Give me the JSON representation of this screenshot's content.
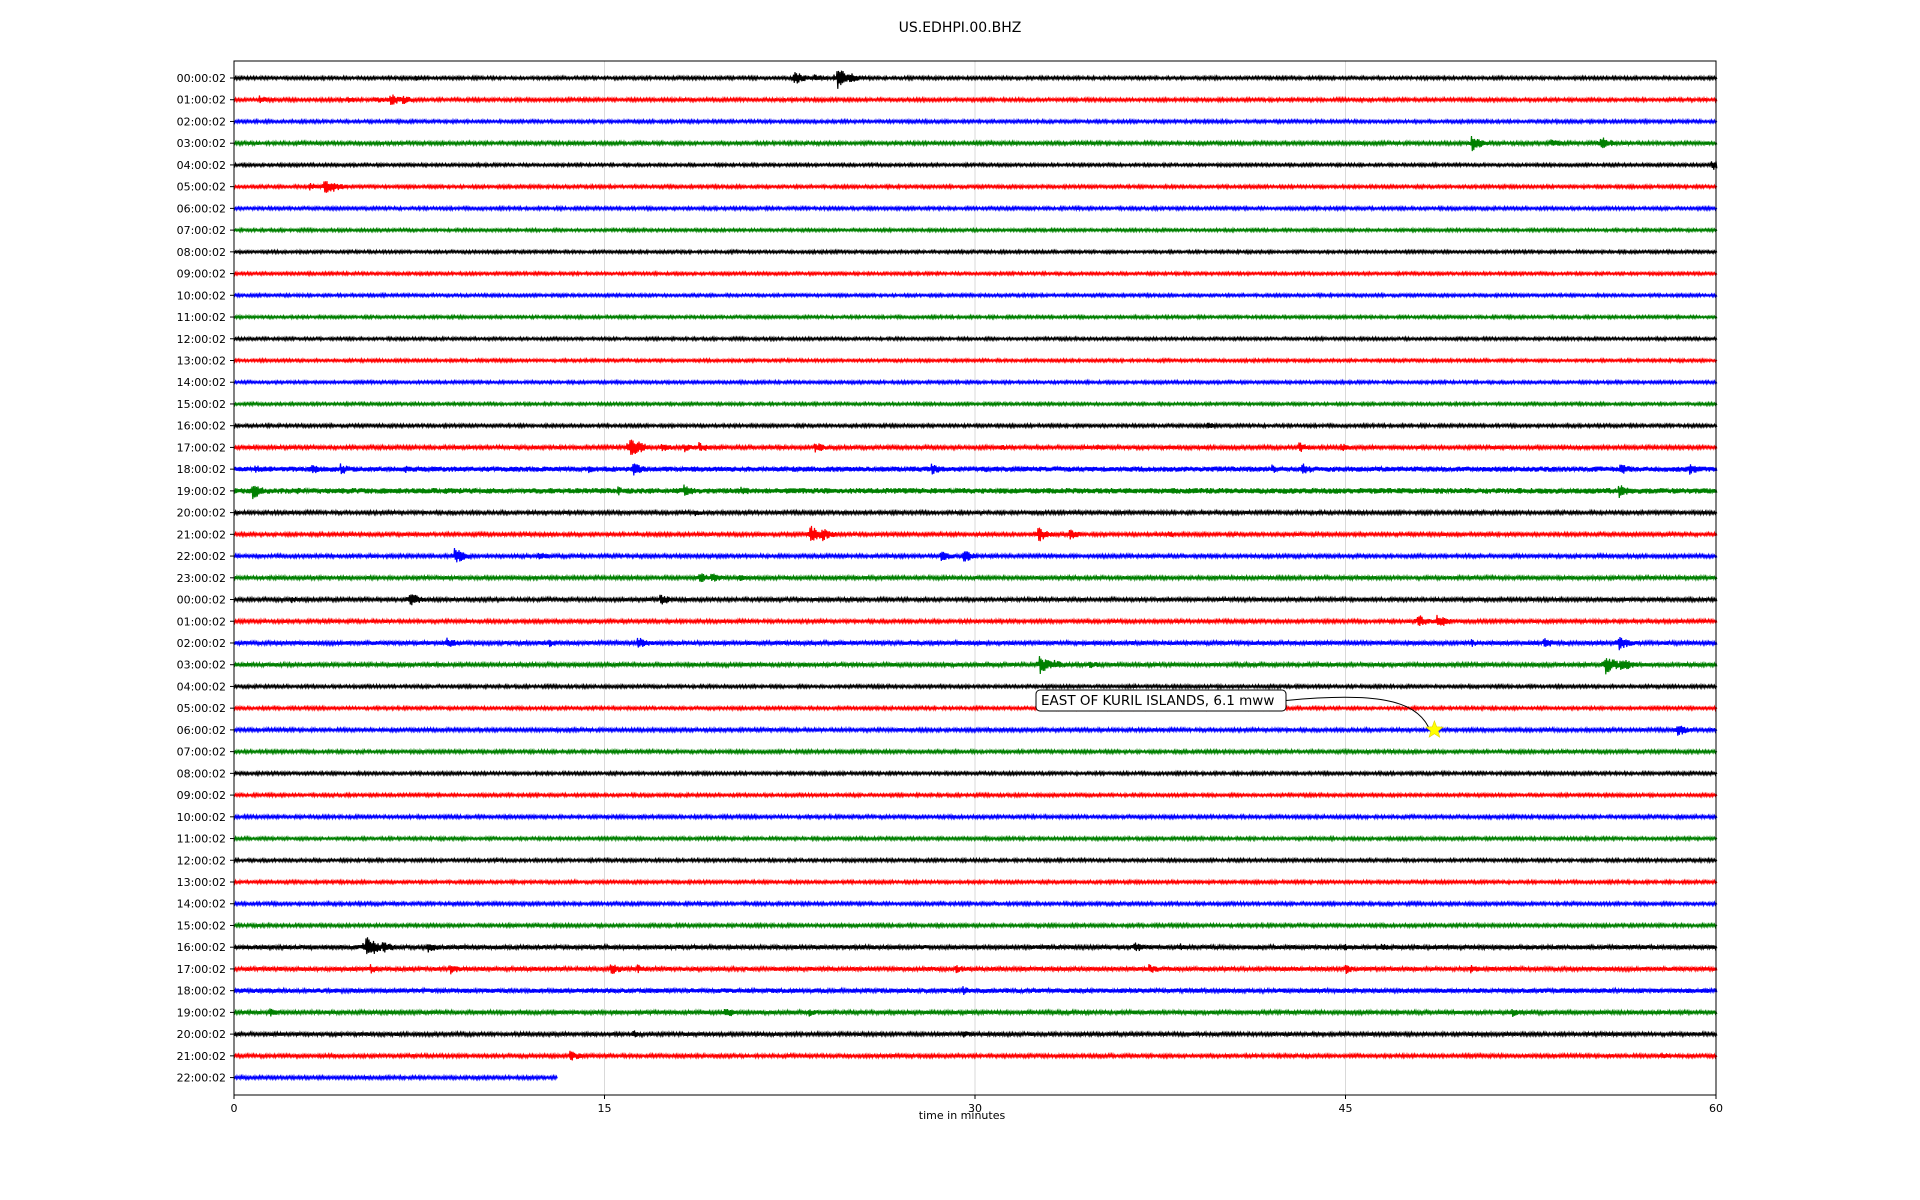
{
  "chart_data": {
    "type": "line",
    "title": "US.EDHPI.00.BHZ",
    "xlabel": "time in minutes",
    "ylabel": "",
    "xlim": [
      0,
      60
    ],
    "x_ticks": [
      0,
      15,
      30,
      45,
      60
    ],
    "grid": "vertical",
    "colors": [
      "#000000",
      "#ff0000",
      "#0000ff",
      "#008000"
    ],
    "row_labels": [
      "00:00:02",
      "01:00:02",
      "02:00:02",
      "03:00:02",
      "04:00:02",
      "05:00:02",
      "06:00:02",
      "07:00:02",
      "08:00:02",
      "09:00:02",
      "10:00:02",
      "11:00:02",
      "12:00:02",
      "13:00:02",
      "14:00:02",
      "15:00:02",
      "16:00:02",
      "17:00:02",
      "18:00:02",
      "19:00:02",
      "20:00:02",
      "21:00:02",
      "22:00:02",
      "23:00:02",
      "00:00:02",
      "01:00:02",
      "02:00:02",
      "03:00:02",
      "04:00:02",
      "05:00:02",
      "06:00:02",
      "07:00:02",
      "08:00:02",
      "09:00:02",
      "10:00:02",
      "11:00:02",
      "12:00:02",
      "13:00:02",
      "14:00:02",
      "15:00:02",
      "16:00:02",
      "17:00:02",
      "18:00:02",
      "19:00:02",
      "20:00:02",
      "21:00:02",
      "22:00:02"
    ],
    "noise": [
      1.5,
      1.6,
      1.5,
      1.7,
      1.4,
      1.5,
      1.5,
      1.4,
      1.4,
      1.4,
      1.4,
      1.4,
      1.4,
      1.4,
      1.4,
      1.4,
      1.5,
      1.8,
      2.6,
      2.8,
      1.7,
      1.7,
      1.7,
      1.8,
      1.8,
      1.7,
      2.0,
      1.9,
      1.5,
      1.5,
      1.7,
      1.6,
      1.5,
      1.5,
      1.6,
      1.5,
      1.5,
      1.5,
      1.6,
      1.6,
      2.1,
      2.0,
      2.3,
      1.9,
      1.8,
      1.7,
      1.6
    ],
    "last_row_end_minute": 13.1,
    "events": [
      {
        "row": 0,
        "minute": 22.6,
        "amp": 9
      },
      {
        "row": 0,
        "minute": 23.5,
        "amp": 5
      },
      {
        "row": 0,
        "minute": 24.4,
        "amp": 12
      },
      {
        "row": 0,
        "minute": 24.9,
        "amp": 6
      },
      {
        "row": 0,
        "minute": 7.3,
        "amp": 3
      },
      {
        "row": 1,
        "minute": 1.0,
        "amp": 5
      },
      {
        "row": 1,
        "minute": 4.6,
        "amp": 4
      },
      {
        "row": 1,
        "minute": 5.7,
        "amp": 4
      },
      {
        "row": 1,
        "minute": 6.3,
        "amp": 7
      },
      {
        "row": 1,
        "minute": 6.8,
        "amp": 5
      },
      {
        "row": 3,
        "minute": 50.1,
        "amp": 8
      },
      {
        "row": 3,
        "minute": 53.3,
        "amp": 5
      },
      {
        "row": 3,
        "minute": 55.3,
        "amp": 8
      },
      {
        "row": 4,
        "minute": 59.8,
        "amp": 6
      },
      {
        "row": 5,
        "minute": 3.0,
        "amp": 5
      },
      {
        "row": 5,
        "minute": 3.6,
        "amp": 9
      },
      {
        "row": 5,
        "minute": 4.0,
        "amp": 6
      },
      {
        "row": 16,
        "minute": 39.4,
        "amp": 4
      },
      {
        "row": 17,
        "minute": 16.0,
        "amp": 14
      },
      {
        "row": 17,
        "minute": 17.3,
        "amp": 5
      },
      {
        "row": 17,
        "minute": 18.2,
        "amp": 5
      },
      {
        "row": 17,
        "minute": 18.8,
        "amp": 6
      },
      {
        "row": 17,
        "minute": 23.5,
        "amp": 6
      },
      {
        "row": 17,
        "minute": 31.0,
        "amp": 4
      },
      {
        "row": 17,
        "minute": 34.9,
        "amp": 4
      },
      {
        "row": 17,
        "minute": 43.1,
        "amp": 6
      },
      {
        "row": 17,
        "minute": 44.8,
        "amp": 5
      },
      {
        "row": 18,
        "minute": 0.8,
        "amp": 5
      },
      {
        "row": 18,
        "minute": 3.1,
        "amp": 6
      },
      {
        "row": 18,
        "minute": 4.3,
        "amp": 6
      },
      {
        "row": 18,
        "minute": 6.9,
        "amp": 4
      },
      {
        "row": 18,
        "minute": 14.3,
        "amp": 5
      },
      {
        "row": 18,
        "minute": 16.1,
        "amp": 8
      },
      {
        "row": 18,
        "minute": 28.2,
        "amp": 6
      },
      {
        "row": 18,
        "minute": 30.2,
        "amp": 5
      },
      {
        "row": 18,
        "minute": 42.0,
        "amp": 5
      },
      {
        "row": 18,
        "minute": 43.2,
        "amp": 7
      },
      {
        "row": 18,
        "minute": 56.1,
        "amp": 7
      },
      {
        "row": 18,
        "minute": 58.9,
        "amp": 6
      },
      {
        "row": 19,
        "minute": 0.7,
        "amp": 9
      },
      {
        "row": 19,
        "minute": 2.5,
        "amp": 4
      },
      {
        "row": 19,
        "minute": 8.5,
        "amp": 4
      },
      {
        "row": 19,
        "minute": 15.5,
        "amp": 5
      },
      {
        "row": 19,
        "minute": 18.2,
        "amp": 8
      },
      {
        "row": 19,
        "minute": 20.5,
        "amp": 6
      },
      {
        "row": 19,
        "minute": 56.0,
        "amp": 8
      },
      {
        "row": 20,
        "minute": 18.6,
        "amp": 4
      },
      {
        "row": 20,
        "minute": 43.8,
        "amp": 3
      },
      {
        "row": 21,
        "minute": 23.3,
        "amp": 10
      },
      {
        "row": 21,
        "minute": 23.8,
        "amp": 7
      },
      {
        "row": 21,
        "minute": 32.5,
        "amp": 9
      },
      {
        "row": 21,
        "minute": 33.8,
        "amp": 6
      },
      {
        "row": 21,
        "minute": 37.8,
        "amp": 4
      },
      {
        "row": 22,
        "minute": 8.9,
        "amp": 9
      },
      {
        "row": 22,
        "minute": 12.3,
        "amp": 5
      },
      {
        "row": 22,
        "minute": 28.6,
        "amp": 6
      },
      {
        "row": 22,
        "minute": 29.5,
        "amp": 7
      },
      {
        "row": 23,
        "minute": 18.8,
        "amp": 6
      },
      {
        "row": 23,
        "minute": 19.3,
        "amp": 6
      },
      {
        "row": 23,
        "minute": 20.4,
        "amp": 4
      },
      {
        "row": 23,
        "minute": 59.7,
        "amp": 3
      },
      {
        "row": 24,
        "minute": 2.3,
        "amp": 4
      },
      {
        "row": 24,
        "minute": 7.1,
        "amp": 8
      },
      {
        "row": 24,
        "minute": 17.2,
        "amp": 7
      },
      {
        "row": 25,
        "minute": 47.9,
        "amp": 8
      },
      {
        "row": 25,
        "minute": 48.7,
        "amp": 8
      },
      {
        "row": 26,
        "minute": 8.6,
        "amp": 6
      },
      {
        "row": 26,
        "minute": 12.7,
        "amp": 5
      },
      {
        "row": 26,
        "minute": 16.3,
        "amp": 7
      },
      {
        "row": 26,
        "minute": 50.1,
        "amp": 4
      },
      {
        "row": 26,
        "minute": 53.0,
        "amp": 6
      },
      {
        "row": 26,
        "minute": 56.0,
        "amp": 9
      },
      {
        "row": 27,
        "minute": 32.6,
        "amp": 10
      },
      {
        "row": 27,
        "minute": 33.2,
        "amp": 6
      },
      {
        "row": 27,
        "minute": 34.6,
        "amp": 5
      },
      {
        "row": 27,
        "minute": 55.5,
        "amp": 11
      },
      {
        "row": 27,
        "minute": 56.1,
        "amp": 9
      },
      {
        "row": 30,
        "minute": 58.4,
        "amp": 7
      },
      {
        "row": 40,
        "minute": 5.3,
        "amp": 14
      },
      {
        "row": 40,
        "minute": 6.0,
        "amp": 7
      },
      {
        "row": 40,
        "minute": 7.8,
        "amp": 6
      },
      {
        "row": 40,
        "minute": 36.4,
        "amp": 6
      },
      {
        "row": 40,
        "minute": 38.3,
        "amp": 4
      },
      {
        "row": 40,
        "minute": 44.9,
        "amp": 4
      },
      {
        "row": 40,
        "minute": 46.4,
        "amp": 5
      },
      {
        "row": 41,
        "minute": 5.5,
        "amp": 5
      },
      {
        "row": 41,
        "minute": 8.7,
        "amp": 6
      },
      {
        "row": 41,
        "minute": 15.2,
        "amp": 7
      },
      {
        "row": 41,
        "minute": 16.3,
        "amp": 5
      },
      {
        "row": 41,
        "minute": 29.2,
        "amp": 5
      },
      {
        "row": 41,
        "minute": 37.0,
        "amp": 6
      },
      {
        "row": 41,
        "minute": 45.0,
        "amp": 5
      },
      {
        "row": 41,
        "minute": 50.0,
        "amp": 5
      },
      {
        "row": 42,
        "minute": 29.5,
        "amp": 5
      },
      {
        "row": 43,
        "minute": 1.4,
        "amp": 5
      },
      {
        "row": 43,
        "minute": 19.8,
        "amp": 7
      },
      {
        "row": 43,
        "minute": 23.2,
        "amp": 5
      },
      {
        "row": 43,
        "minute": 51.7,
        "amp": 5
      },
      {
        "row": 44,
        "minute": 16.1,
        "amp": 5
      },
      {
        "row": 44,
        "minute": 29.5,
        "amp": 4
      },
      {
        "row": 45,
        "minute": 13.6,
        "amp": 6
      },
      {
        "row": 45,
        "minute": 57.8,
        "amp": 4
      }
    ],
    "annotation": {
      "text": "EAST OF KURIL ISLANDS, 6.1 mww",
      "row": 30,
      "minute": 48.6,
      "marker_color": "#ffff00"
    }
  }
}
